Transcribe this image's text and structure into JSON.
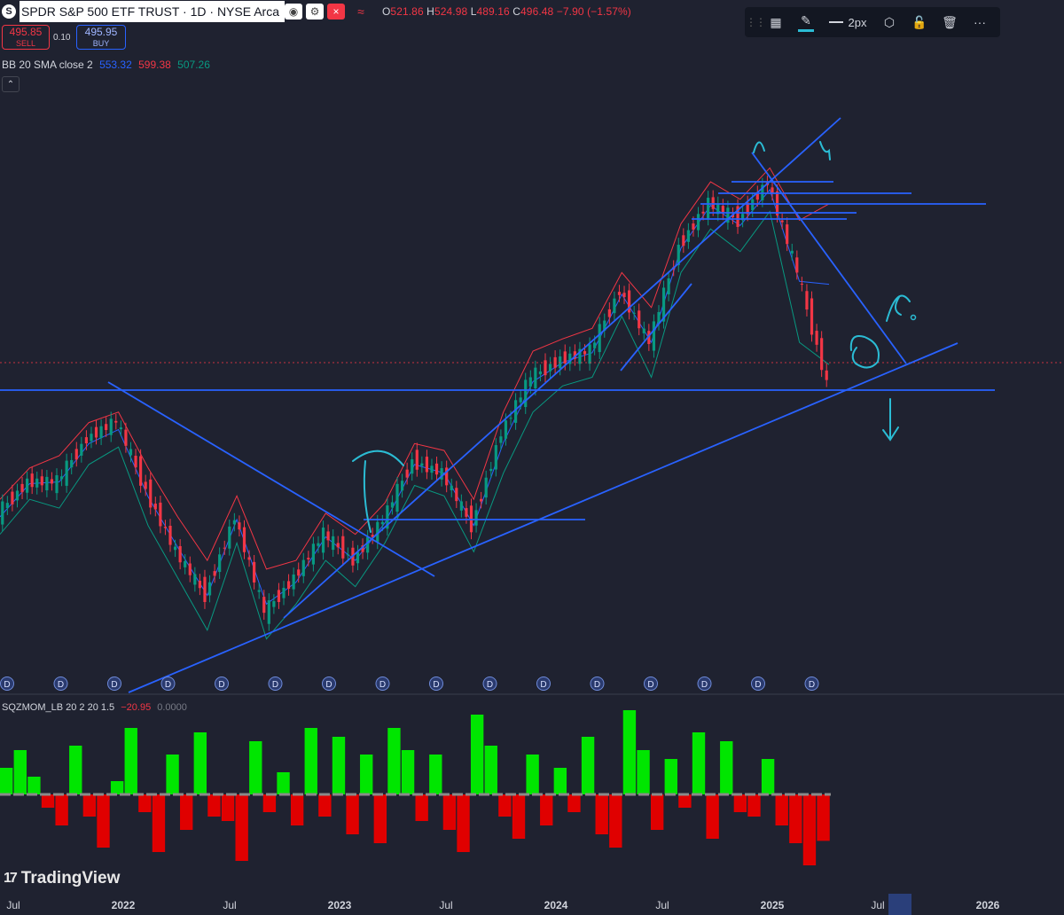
{
  "header": {
    "symbol_logo": "S",
    "title": "SPDR S&P 500 ETF TRUST · 1D · NYSE Arca",
    "ohlc": {
      "o_label": "O",
      "o": "521.86",
      "h_label": "H",
      "h": "524.98",
      "l_label": "L",
      "l": "489.16",
      "c_label": "C",
      "c": "496.48",
      "change": "−7.90 (−1.57%)"
    }
  },
  "trade": {
    "sell_price": "495.85",
    "sell_label": "SELL",
    "spread": "0.10",
    "buy_price": "495.95",
    "buy_label": "BUY"
  },
  "bb_legend": {
    "name": "BB 20 SMA close 2",
    "basis": "553.32",
    "upper": "599.38",
    "lower": "507.26"
  },
  "toolbar": {
    "width_label": "2px",
    "pencil_color": "#2bbcd4"
  },
  "squeeze_legend": {
    "name": "SQZMOM_LB 20 2 20 1.5",
    "value": "−20.95",
    "value2": "0.0000"
  },
  "branding": {
    "name": "TradingView"
  },
  "colors": {
    "background": "#1f2230",
    "up": "#089981",
    "down": "#f23645",
    "trendline": "#2962ff",
    "basis": "#2962ff",
    "drawing": "#2bbcd4",
    "mom_pos": "#00e600",
    "mom_neg": "#e00000",
    "price_line": "#f23645"
  },
  "chart_data": [
    {
      "type": "line",
      "name": "price",
      "x_axis": {
        "labels": [
          "Jul",
          "2022",
          "Jul",
          "2023",
          "Jul",
          "2024",
          "Jul",
          "2025",
          "Jul",
          "2026"
        ]
      },
      "x": [
        "2021-06",
        "2021-08",
        "2021-10",
        "2021-12",
        "2022-01",
        "2022-03",
        "2022-05",
        "2022-06",
        "2022-08",
        "2022-10",
        "2022-12",
        "2023-02",
        "2023-03",
        "2023-05",
        "2023-07",
        "2023-08",
        "2023-10",
        "2023-12",
        "2024-02",
        "2024-04",
        "2024-05",
        "2024-07",
        "2024-08",
        "2024-10",
        "2024-12",
        "2025-01",
        "2025-02",
        "2025-03",
        "2025-04"
      ],
      "close": [
        422,
        440,
        440,
        465,
        475,
        435,
        400,
        375,
        420,
        365,
        385,
        410,
        395,
        418,
        452,
        445,
        415,
        468,
        500,
        510,
        515,
        550,
        520,
        575,
        600,
        590,
        612,
        560,
        496.48
      ],
      "upper_band": [
        430,
        448,
        455,
        474,
        480,
        448,
        420,
        395,
        432,
        390,
        395,
        422,
        410,
        428,
        462,
        458,
        430,
        480,
        515,
        522,
        528,
        560,
        540,
        588,
        612,
        602,
        620,
        590,
        599.38
      ],
      "lower_band": [
        410,
        430,
        425,
        450,
        460,
        415,
        385,
        355,
        405,
        350,
        370,
        395,
        380,
        405,
        438,
        432,
        400,
        445,
        480,
        495,
        500,
        535,
        500,
        560,
        585,
        572,
        595,
        520,
        507.26
      ],
      "last_price": 496.48
    },
    {
      "type": "bar",
      "name": "squeeze_momentum",
      "values": [
        12,
        20,
        8,
        -6,
        -14,
        22,
        -10,
        -24,
        6,
        30,
        -8,
        -26,
        18,
        -16,
        28,
        -10,
        -12,
        -30,
        24,
        -8,
        10,
        -14,
        30,
        -10,
        26,
        -18,
        18,
        -22,
        30,
        20,
        -12,
        18,
        -16,
        -26,
        36,
        22,
        -10,
        -20,
        18,
        -14,
        12,
        -8,
        26,
        -18,
        -24,
        38,
        20,
        -16,
        16,
        -6,
        28,
        -20,
        24,
        -8,
        -10,
        16,
        -14,
        -22,
        -32,
        -20.95
      ]
    }
  ]
}
